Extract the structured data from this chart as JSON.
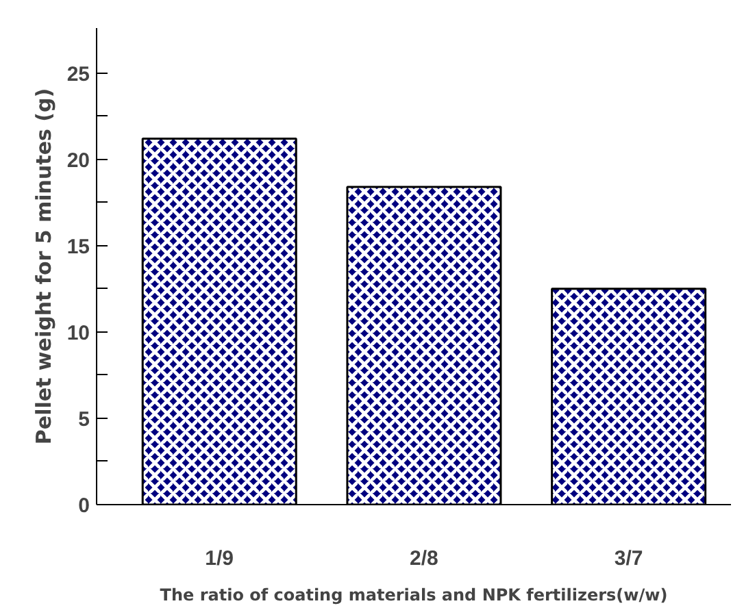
{
  "chart_data": {
    "type": "bar",
    "xlabel": "The ratio of coating materials and NPK fertilizers(w/w)",
    "ylabel": "Pellet weight for 5 minutes (g)",
    "categories": [
      "1/9",
      "2/8",
      "3/7"
    ],
    "values": [
      21.2,
      18.4,
      12.5
    ],
    "color": "#00007f",
    "ylim": [
      0,
      27.6
    ],
    "yticks": [
      0,
      {
        "value": 2.5,
        "label": null
      },
      5,
      {
        "value": 7.5,
        "label": null
      },
      10,
      {
        "value": 12.5,
        "label": null
      },
      15,
      {
        "value": 17.5,
        "label": null
      },
      20,
      {
        "value": 22.5,
        "label": null
      },
      25
    ],
    "grid": false
  }
}
